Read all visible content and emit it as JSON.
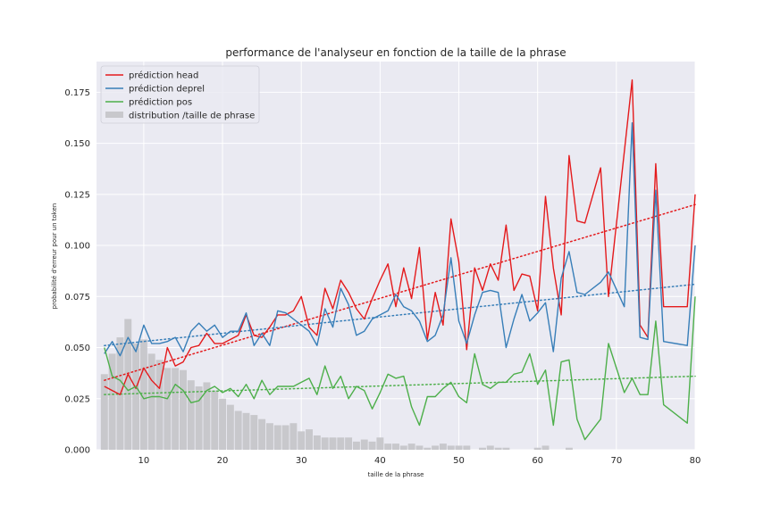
{
  "chart_data": {
    "type": "line",
    "title": "performance de l'analyseur en fonction de la taille de la phrase",
    "xlabel": "taille de la phrase",
    "ylabel": "probabilité d'erreur pour un token",
    "xlim": [
      4,
      80
    ],
    "ylim": [
      0,
      0.19
    ],
    "xticks": [
      10,
      20,
      30,
      40,
      50,
      60,
      70,
      80
    ],
    "yticks": [
      0.0,
      0.025,
      0.05,
      0.075,
      0.1,
      0.125,
      0.15,
      0.175
    ],
    "ytick_labels": [
      "0.000",
      "0.025",
      "0.050",
      "0.075",
      "0.100",
      "0.125",
      "0.150",
      "0.175"
    ],
    "grid": true,
    "legend_position": "top-left",
    "colors": {
      "background": "#eaeaf2",
      "grid": "#ffffff",
      "head": "#e41a1c",
      "deprel": "#377eb8",
      "pos": "#4daf4a",
      "distribution": "#c8c8cc"
    },
    "series": [
      {
        "name": "prédiction head",
        "key": "head",
        "points": [
          [
            5,
            0.031
          ],
          [
            6,
            0.029
          ],
          [
            7,
            0.027
          ],
          [
            8,
            0.037
          ],
          [
            9,
            0.03
          ],
          [
            10,
            0.04
          ],
          [
            11,
            0.034
          ],
          [
            12,
            0.03
          ],
          [
            13,
            0.05
          ],
          [
            14,
            0.041
          ],
          [
            15,
            0.043
          ],
          [
            16,
            0.05
          ],
          [
            17,
            0.051
          ],
          [
            18,
            0.057
          ],
          [
            19,
            0.052
          ],
          [
            20,
            0.052
          ],
          [
            21,
            0.054
          ],
          [
            22,
            0.056
          ],
          [
            23,
            0.066
          ],
          [
            24,
            0.056
          ],
          [
            25,
            0.055
          ],
          [
            26,
            0.06
          ],
          [
            27,
            0.066
          ],
          [
            28,
            0.066
          ],
          [
            29,
            0.068
          ],
          [
            30,
            0.075
          ],
          [
            31,
            0.06
          ],
          [
            32,
            0.056
          ],
          [
            33,
            0.079
          ],
          [
            34,
            0.069
          ],
          [
            35,
            0.083
          ],
          [
            36,
            0.077
          ],
          [
            37,
            0.069
          ],
          [
            38,
            0.064
          ],
          [
            39,
            0.074
          ],
          [
            40,
            0.083
          ],
          [
            41,
            0.091
          ],
          [
            42,
            0.07
          ],
          [
            43,
            0.089
          ],
          [
            44,
            0.074
          ],
          [
            45,
            0.099
          ],
          [
            46,
            0.054
          ],
          [
            47,
            0.077
          ],
          [
            48,
            0.061
          ],
          [
            49,
            0.113
          ],
          [
            50,
            0.092
          ],
          [
            51,
            0.049
          ],
          [
            52,
            0.089
          ],
          [
            53,
            0.078
          ],
          [
            54,
            0.091
          ],
          [
            55,
            0.083
          ],
          [
            56,
            0.11
          ],
          [
            57,
            0.078
          ],
          [
            58,
            0.086
          ],
          [
            59,
            0.085
          ],
          [
            60,
            0.068
          ],
          [
            61,
            0.124
          ],
          [
            62,
            0.089
          ],
          [
            63,
            0.066
          ],
          [
            64,
            0.144
          ],
          [
            65,
            0.112
          ],
          [
            66,
            0.111
          ],
          [
            68,
            0.138
          ],
          [
            69,
            0.075
          ],
          [
            72,
            0.181
          ],
          [
            73,
            0.061
          ],
          [
            74,
            0.055
          ],
          [
            75,
            0.14
          ],
          [
            76,
            0.07
          ],
          [
            79,
            0.07
          ],
          [
            80,
            0.125
          ]
        ]
      },
      {
        "name": "prédiction deprel",
        "key": "deprel",
        "points": [
          [
            5,
            0.047
          ],
          [
            6,
            0.053
          ],
          [
            7,
            0.046
          ],
          [
            8,
            0.055
          ],
          [
            9,
            0.048
          ],
          [
            10,
            0.061
          ],
          [
            11,
            0.052
          ],
          [
            12,
            0.052
          ],
          [
            13,
            0.053
          ],
          [
            14,
            0.055
          ],
          [
            15,
            0.048
          ],
          [
            16,
            0.058
          ],
          [
            17,
            0.062
          ],
          [
            18,
            0.058
          ],
          [
            19,
            0.061
          ],
          [
            20,
            0.055
          ],
          [
            21,
            0.058
          ],
          [
            22,
            0.058
          ],
          [
            23,
            0.067
          ],
          [
            24,
            0.051
          ],
          [
            25,
            0.057
          ],
          [
            26,
            0.051
          ],
          [
            27,
            0.068
          ],
          [
            28,
            0.067
          ],
          [
            29,
            0.064
          ],
          [
            30,
            0.061
          ],
          [
            31,
            0.058
          ],
          [
            32,
            0.051
          ],
          [
            33,
            0.069
          ],
          [
            34,
            0.06
          ],
          [
            35,
            0.079
          ],
          [
            36,
            0.071
          ],
          [
            37,
            0.056
          ],
          [
            38,
            0.058
          ],
          [
            39,
            0.064
          ],
          [
            40,
            0.066
          ],
          [
            41,
            0.068
          ],
          [
            42,
            0.076
          ],
          [
            43,
            0.07
          ],
          [
            44,
            0.068
          ],
          [
            45,
            0.063
          ],
          [
            46,
            0.053
          ],
          [
            47,
            0.056
          ],
          [
            48,
            0.066
          ],
          [
            49,
            0.094
          ],
          [
            50,
            0.063
          ],
          [
            51,
            0.052
          ],
          [
            52,
            0.066
          ],
          [
            53,
            0.077
          ],
          [
            54,
            0.078
          ],
          [
            55,
            0.077
          ],
          [
            56,
            0.05
          ],
          [
            57,
            0.064
          ],
          [
            58,
            0.076
          ],
          [
            59,
            0.063
          ],
          [
            60,
            0.067
          ],
          [
            61,
            0.072
          ],
          [
            62,
            0.048
          ],
          [
            63,
            0.084
          ],
          [
            64,
            0.097
          ],
          [
            65,
            0.077
          ],
          [
            66,
            0.076
          ],
          [
            68,
            0.082
          ],
          [
            69,
            0.087
          ],
          [
            71,
            0.07
          ],
          [
            72,
            0.16
          ],
          [
            73,
            0.055
          ],
          [
            74,
            0.054
          ],
          [
            75,
            0.127
          ],
          [
            76,
            0.053
          ],
          [
            79,
            0.051
          ],
          [
            80,
            0.1
          ]
        ]
      },
      {
        "name": "prédiction pos",
        "key": "pos",
        "points": [
          [
            5,
            0.05
          ],
          [
            6,
            0.036
          ],
          [
            7,
            0.034
          ],
          [
            8,
            0.029
          ],
          [
            9,
            0.031
          ],
          [
            10,
            0.025
          ],
          [
            11,
            0.026
          ],
          [
            12,
            0.026
          ],
          [
            13,
            0.025
          ],
          [
            14,
            0.032
          ],
          [
            15,
            0.029
          ],
          [
            16,
            0.023
          ],
          [
            17,
            0.024
          ],
          [
            18,
            0.029
          ],
          [
            19,
            0.031
          ],
          [
            20,
            0.028
          ],
          [
            21,
            0.03
          ],
          [
            22,
            0.026
          ],
          [
            23,
            0.032
          ],
          [
            24,
            0.025
          ],
          [
            25,
            0.034
          ],
          [
            26,
            0.027
          ],
          [
            27,
            0.031
          ],
          [
            28,
            0.031
          ],
          [
            29,
            0.031
          ],
          [
            30,
            0.033
          ],
          [
            31,
            0.035
          ],
          [
            32,
            0.027
          ],
          [
            33,
            0.041
          ],
          [
            34,
            0.03
          ],
          [
            35,
            0.036
          ],
          [
            36,
            0.025
          ],
          [
            37,
            0.031
          ],
          [
            38,
            0.029
          ],
          [
            39,
            0.02
          ],
          [
            40,
            0.028
          ],
          [
            41,
            0.037
          ],
          [
            42,
            0.035
          ],
          [
            43,
            0.036
          ],
          [
            44,
            0.021
          ],
          [
            45,
            0.012
          ],
          [
            46,
            0.026
          ],
          [
            47,
            0.026
          ],
          [
            48,
            0.03
          ],
          [
            49,
            0.033
          ],
          [
            50,
            0.026
          ],
          [
            51,
            0.023
          ],
          [
            52,
            0.047
          ],
          [
            53,
            0.032
          ],
          [
            54,
            0.03
          ],
          [
            55,
            0.033
          ],
          [
            56,
            0.033
          ],
          [
            57,
            0.037
          ],
          [
            58,
            0.038
          ],
          [
            59,
            0.047
          ],
          [
            60,
            0.032
          ],
          [
            61,
            0.039
          ],
          [
            62,
            0.012
          ],
          [
            63,
            0.043
          ],
          [
            64,
            0.044
          ],
          [
            65,
            0.015
          ],
          [
            66,
            0.005
          ],
          [
            68,
            0.015
          ],
          [
            69,
            0.052
          ],
          [
            71,
            0.028
          ],
          [
            72,
            0.035
          ],
          [
            73,
            0.027
          ],
          [
            74,
            0.027
          ],
          [
            75,
            0.063
          ],
          [
            76,
            0.022
          ],
          [
            79,
            0.013
          ],
          [
            80,
            0.075
          ]
        ]
      },
      {
        "name": "distribution /taille de phrase",
        "key": "distribution",
        "type": "bar",
        "points": [
          [
            5,
            0.037
          ],
          [
            6,
            0.047
          ],
          [
            7,
            0.055
          ],
          [
            8,
            0.064
          ],
          [
            9,
            0.052
          ],
          [
            10,
            0.054
          ],
          [
            11,
            0.047
          ],
          [
            12,
            0.044
          ],
          [
            13,
            0.04
          ],
          [
            14,
            0.04
          ],
          [
            15,
            0.039
          ],
          [
            16,
            0.034
          ],
          [
            17,
            0.031
          ],
          [
            18,
            0.033
          ],
          [
            19,
            0.029
          ],
          [
            20,
            0.025
          ],
          [
            21,
            0.022
          ],
          [
            22,
            0.019
          ],
          [
            23,
            0.018
          ],
          [
            24,
            0.017
          ],
          [
            25,
            0.015
          ],
          [
            26,
            0.013
          ],
          [
            27,
            0.012
          ],
          [
            28,
            0.012
          ],
          [
            29,
            0.013
          ],
          [
            30,
            0.009
          ],
          [
            31,
            0.01
          ],
          [
            32,
            0.007
          ],
          [
            33,
            0.006
          ],
          [
            34,
            0.006
          ],
          [
            35,
            0.006
          ],
          [
            36,
            0.006
          ],
          [
            37,
            0.004
          ],
          [
            38,
            0.005
          ],
          [
            39,
            0.004
          ],
          [
            40,
            0.006
          ],
          [
            41,
            0.003
          ],
          [
            42,
            0.003
          ],
          [
            43,
            0.002
          ],
          [
            44,
            0.003
          ],
          [
            45,
            0.002
          ],
          [
            46,
            0.001
          ],
          [
            47,
            0.002
          ],
          [
            48,
            0.003
          ],
          [
            49,
            0.002
          ],
          [
            50,
            0.002
          ],
          [
            51,
            0.002
          ],
          [
            53,
            0.001
          ],
          [
            54,
            0.002
          ],
          [
            55,
            0.001
          ],
          [
            56,
            0.001
          ],
          [
            60,
            0.001
          ],
          [
            61,
            0.002
          ],
          [
            64,
            0.001
          ]
        ]
      }
    ],
    "trendlines": [
      {
        "key": "head",
        "from": [
          5,
          0.034
        ],
        "to": [
          80,
          0.12
        ]
      },
      {
        "key": "deprel",
        "from": [
          5,
          0.051
        ],
        "to": [
          80,
          0.081
        ]
      },
      {
        "key": "pos",
        "from": [
          5,
          0.027
        ],
        "to": [
          80,
          0.036
        ]
      }
    ]
  }
}
